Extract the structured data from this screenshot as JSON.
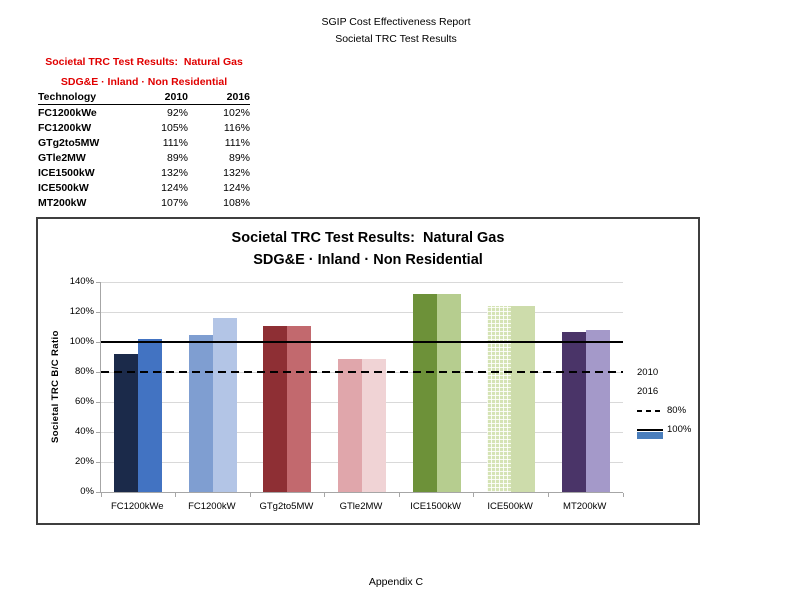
{
  "page": {
    "header_line1": "SGIP Cost Effectiveness Report",
    "header_line2": "Societal TRC Test Results",
    "footer": "Appendix C"
  },
  "summary": {
    "title_line1": "Societal TRC Test Results:  Natural Gas",
    "title_line2": "SDG&E · Inland · Non Residential",
    "title_color": "#e00000",
    "columns": [
      "Technology",
      "2010",
      "2016"
    ],
    "rows": [
      {
        "technology": "FC1200kWe",
        "v2010": "92%",
        "v2016": "102%"
      },
      {
        "technology": "FC1200kW",
        "v2010": "105%",
        "v2016": "116%"
      },
      {
        "technology": "GTg2to5MW",
        "v2010": "111%",
        "v2016": "111%"
      },
      {
        "technology": "GTle2MW",
        "v2010": "89%",
        "v2016": "89%"
      },
      {
        "technology": "ICE1500kW",
        "v2010": "132%",
        "v2016": "132%"
      },
      {
        "technology": "ICE500kW",
        "v2010": "124%",
        "v2016": "124%"
      },
      {
        "technology": "MT200kW",
        "v2010": "107%",
        "v2016": "108%"
      }
    ]
  },
  "chart_data": {
    "type": "bar",
    "title_line1": "Societal TRC Test Results:  Natural Gas",
    "title_line2": "SDG&E · Inland · Non Residential",
    "ylabel": "Societal TRC B/C Ratio",
    "ylim_pct": [
      0,
      140
    ],
    "ytick_step_pct": 20,
    "ytick_labels": [
      "0%",
      "20%",
      "40%",
      "60%",
      "80%",
      "100%",
      "120%",
      "140%"
    ],
    "grid": true,
    "categories": [
      "FC1200kWe",
      "FC1200kW",
      "GTg2to5MW",
      "GTle2MW",
      "ICE1500kW",
      "ICE500kW",
      "MT200kW"
    ],
    "series": [
      {
        "name": "2010",
        "values_pct": [
          92,
          105,
          111,
          89,
          132,
          124,
          107
        ]
      },
      {
        "name": "2016",
        "values_pct": [
          102,
          116,
          111,
          89,
          132,
          124,
          108
        ]
      }
    ],
    "bar_styles": [
      {
        "category": "FC1200kWe",
        "colors": [
          "#1b2a4a",
          "#4273c2"
        ],
        "pattern": [
          false,
          false
        ]
      },
      {
        "category": "FC1200kW",
        "colors": [
          "#7f9ed1",
          "#b3c5e6"
        ],
        "pattern": [
          false,
          false
        ]
      },
      {
        "category": "GTg2to5MW",
        "colors": [
          "#8e2f34",
          "#c2696e"
        ],
        "pattern": [
          false,
          false
        ]
      },
      {
        "category": "GTle2MW",
        "colors": [
          "#e0a6ab",
          "#f0d3d5"
        ],
        "pattern": [
          false,
          false
        ]
      },
      {
        "category": "ICE1500kW",
        "colors": [
          "#6d9139",
          "#b6cd8f"
        ],
        "pattern": [
          false,
          false
        ]
      },
      {
        "category": "ICE500kW",
        "colors": [
          "#d5e3b5",
          "#cddcab"
        ],
        "pattern": [
          true,
          false
        ]
      },
      {
        "category": "MT200kW",
        "colors": [
          "#4a3468",
          "#a499c9"
        ],
        "pattern": [
          false,
          false
        ]
      }
    ],
    "reference_lines": [
      {
        "label": "80%",
        "value_pct": 80,
        "style": "dashed",
        "color": "#000000"
      },
      {
        "label": "100%",
        "value_pct": 100,
        "style": "solid",
        "color": "#000000"
      }
    ],
    "legend_position": "right",
    "legend": [
      {
        "label": "2010",
        "swatch": "bar",
        "color": "#2e4d77"
      },
      {
        "label": "2016",
        "swatch": "bar",
        "color": "#4a7ebc"
      },
      {
        "label": "80%",
        "swatch": "dashed-line",
        "color": "#000000"
      },
      {
        "label": "100%",
        "swatch": "solid-line",
        "color": "#000000"
      }
    ]
  }
}
